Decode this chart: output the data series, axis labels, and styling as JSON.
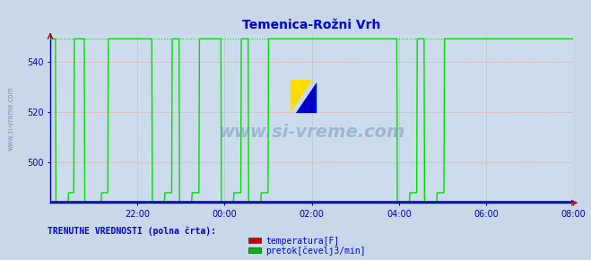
{
  "title": "Temenica-Rožni Vrh",
  "title_color": "#0000cc",
  "bg_color": "#ccdcec",
  "fig_bg_color": "#c8d8e8",
  "x_min": 0,
  "x_max": 288,
  "y_min": 484,
  "y_max": 549,
  "yticks": [
    500,
    520,
    540
  ],
  "xtick_labels": [
    "22:00",
    "00:00",
    "02:00",
    "04:00",
    "06:00",
    "08:00"
  ],
  "xtick_positions": [
    48,
    96,
    144,
    192,
    240,
    288
  ],
  "grid_color_h": "#dd9999",
  "grid_color_v": "#99bb99",
  "line_color_flow": "#00dd00",
  "line_color_temp": "#0000cc",
  "axis_color": "#0000aa",
  "label_color": "#0000cc",
  "watermark_color": "#8899bb",
  "ylabel_text": "www.si-vreme.com",
  "legend_title": "TRENUTNE VREDNOSTI (polna črta):",
  "legend_items": [
    "temperatura[F]",
    "pretok[čevelj3/min]"
  ],
  "legend_colors": [
    "#cc0000",
    "#00bb00"
  ],
  "flow_high": 549,
  "flow_low": 484,
  "flow_step": 488,
  "temp_val": 484.3
}
